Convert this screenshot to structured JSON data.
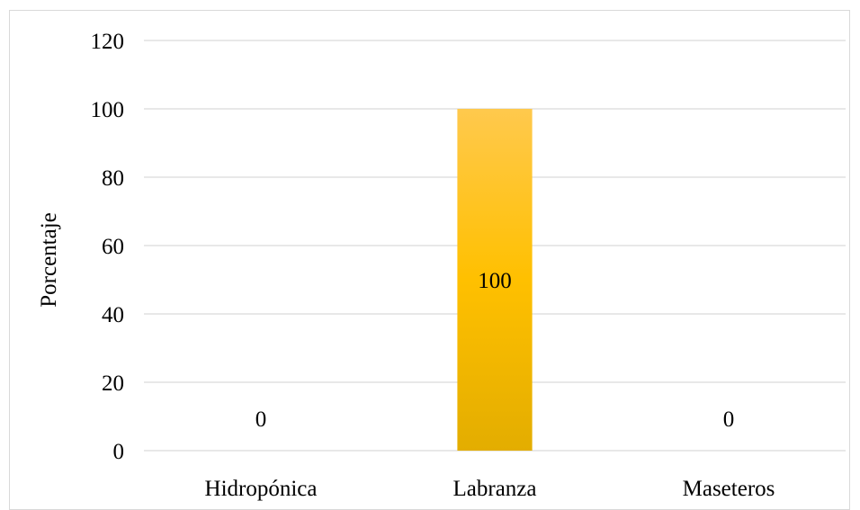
{
  "chart_data": {
    "type": "bar",
    "categories": [
      "Hidropónica",
      "Labranza",
      "Maseteros"
    ],
    "values": [
      0,
      100,
      0
    ],
    "data_labels": [
      "0",
      "100",
      "0"
    ],
    "title": "",
    "xlabel": "",
    "ylabel": "Porcentaje",
    "ylim": [
      0,
      120
    ],
    "yticks": [
      0,
      20,
      40,
      60,
      80,
      100,
      120
    ],
    "grid": true,
    "legend": "none",
    "colors": {
      "bar_top": "#FFC94D",
      "bar_mid": "#FFC000",
      "bar_bottom": "#E3AD00",
      "grid": "#D9D9D9",
      "frame": "#D9D9D9"
    }
  }
}
